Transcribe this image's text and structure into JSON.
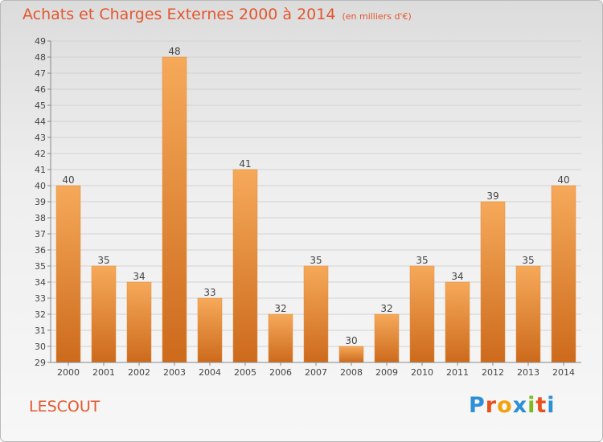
{
  "header": {
    "title": "Achats et Charges Externes 2000 à 2014",
    "subtitle": "(en milliers d'€)"
  },
  "footer": {
    "place": "LESCOUT",
    "brand": "Proxiti",
    "brand_colors": [
      "#2d8fd5",
      "#e8501e",
      "#f2a20c",
      "#2d8fd5",
      "#7dba20",
      "#e8501e",
      "#2d8fd5"
    ]
  },
  "colors": {
    "title": "#e4572e",
    "bar_light": "#f6a95a",
    "bar_dark": "#cd6a1c",
    "grid": "#d2d2d2"
  },
  "chart_data": {
    "type": "bar",
    "categories": [
      "2000",
      "2001",
      "2002",
      "2003",
      "2004",
      "2005",
      "2006",
      "2007",
      "2008",
      "2009",
      "2010",
      "2011",
      "2012",
      "2013",
      "2014"
    ],
    "values": [
      40,
      35,
      34,
      48,
      33,
      41,
      32,
      35,
      30,
      32,
      35,
      34,
      39,
      35,
      40
    ],
    "ylim": [
      29,
      49
    ],
    "yticks": [
      29,
      30,
      31,
      32,
      33,
      34,
      35,
      36,
      37,
      38,
      39,
      40,
      41,
      42,
      43,
      44,
      45,
      46,
      47,
      48,
      49
    ],
    "grid": true,
    "data_labels": true,
    "title": "Achats et Charges Externes 2000 à 2014",
    "xlabel": "",
    "ylabel": ""
  }
}
